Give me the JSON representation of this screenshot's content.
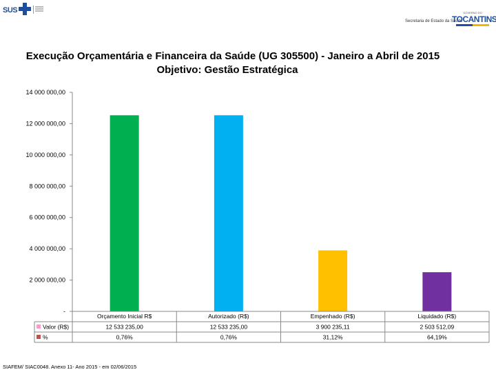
{
  "header": {
    "sus_label": "SUS",
    "state_secretariat": "Secretaria de Estado da Saúde",
    "state_name": "TOCANTINS",
    "state_top": "GOVERNO DO"
  },
  "title_line1": "Execução Orçamentária e Financeira da Saúde (UG 305500) - Janeiro a Abril de 2015",
  "title_line2": "Objetivo: Gestão Estratégica",
  "source": "SIAFEM/ SIAC0048. Anexo 11- Ano 2015 - em 02/06/2015",
  "chart_data": {
    "type": "bar",
    "title": "Execução Orçamentária e Financeira da Saúde (UG 305500) - Janeiro a Abril de 2015",
    "subtitle": "Objetivo: Gestão Estratégica",
    "categories": [
      "Orçamento Inicial R$",
      "Autorizado (R$)",
      "Empenhado (R$)",
      "Liquidado (R$)"
    ],
    "values": [
      12533235.0,
      12533235.0,
      3900235.11,
      2503512.09
    ],
    "colors": [
      "#00b050",
      "#00b0f0",
      "#ffc000",
      "#7030a0"
    ],
    "ylim": [
      0,
      14000000
    ],
    "yticks": [
      0,
      2000000,
      4000000,
      6000000,
      8000000,
      10000000,
      12000000,
      14000000
    ],
    "ytick_labels": [
      "-",
      "2 000 000,00",
      "4 000 000,00",
      "6 000 000,00",
      "8 000 000,00",
      "10 000 000,00",
      "12 000 000,00",
      "14 000 000,00"
    ],
    "table": {
      "rows": [
        {
          "name": "Valor (R$)",
          "color": "#ff99cc",
          "cells": [
            "12 533 235,00",
            "12 533 235,00",
            "3 900 235,11",
            "2 503 512,09"
          ]
        },
        {
          "name": "%",
          "color": "#c0504d",
          "cells": [
            "0,76%",
            "0,76%",
            "31,12%",
            "64,19%"
          ]
        }
      ]
    },
    "xlabel": "",
    "ylabel": ""
  }
}
